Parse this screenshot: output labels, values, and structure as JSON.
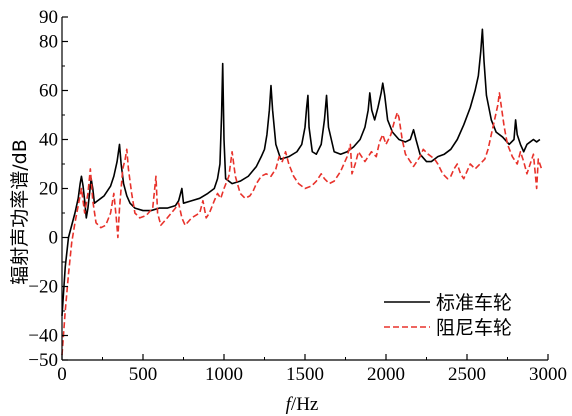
{
  "chart_data": {
    "type": "line",
    "xlabel": "f/Hz",
    "xlabel_italic": "f",
    "xlabel_rest": "/Hz",
    "ylabel": "辐射声功率谱/dB",
    "xlim": [
      0,
      3000
    ],
    "ylim": [
      -50,
      90
    ],
    "x_ticks": [
      0,
      500,
      1000,
      1500,
      2000,
      2500,
      3000
    ],
    "y_ticks": [
      -50,
      -40,
      -20,
      0,
      20,
      40,
      60,
      80,
      90
    ],
    "grid": false,
    "legend_position": "bottom-right",
    "series": [
      {
        "name": "标准车轮",
        "color": "#000000",
        "style": "solid",
        "points": [
          [
            0,
            -32
          ],
          [
            20,
            -12
          ],
          [
            40,
            0
          ],
          [
            60,
            5
          ],
          [
            80,
            10
          ],
          [
            100,
            16
          ],
          [
            112,
            22
          ],
          [
            120,
            25
          ],
          [
            130,
            21
          ],
          [
            140,
            15
          ],
          [
            150,
            8
          ],
          [
            160,
            12
          ],
          [
            170,
            18
          ],
          [
            180,
            24
          ],
          [
            190,
            20
          ],
          [
            200,
            14
          ],
          [
            220,
            15
          ],
          [
            240,
            16
          ],
          [
            260,
            17
          ],
          [
            280,
            19
          ],
          [
            300,
            21
          ],
          [
            320,
            25
          ],
          [
            340,
            31
          ],
          [
            355,
            38
          ],
          [
            365,
            30
          ],
          [
            380,
            22
          ],
          [
            400,
            17
          ],
          [
            420,
            14
          ],
          [
            450,
            12
          ],
          [
            500,
            11
          ],
          [
            550,
            11
          ],
          [
            600,
            12
          ],
          [
            650,
            12
          ],
          [
            700,
            13
          ],
          [
            720,
            15
          ],
          [
            740,
            20
          ],
          [
            750,
            14
          ],
          [
            800,
            15
          ],
          [
            850,
            16
          ],
          [
            900,
            18
          ],
          [
            940,
            20
          ],
          [
            960,
            24
          ],
          [
            975,
            30
          ],
          [
            985,
            50
          ],
          [
            992,
            71
          ],
          [
            1000,
            40
          ],
          [
            1010,
            24
          ],
          [
            1050,
            22
          ],
          [
            1100,
            23
          ],
          [
            1150,
            25
          ],
          [
            1200,
            29
          ],
          [
            1230,
            33
          ],
          [
            1250,
            36
          ],
          [
            1265,
            42
          ],
          [
            1280,
            52
          ],
          [
            1290,
            62
          ],
          [
            1300,
            52
          ],
          [
            1320,
            38
          ],
          [
            1350,
            32
          ],
          [
            1400,
            33
          ],
          [
            1450,
            35
          ],
          [
            1480,
            38
          ],
          [
            1500,
            45
          ],
          [
            1510,
            53
          ],
          [
            1518,
            58
          ],
          [
            1525,
            45
          ],
          [
            1545,
            35
          ],
          [
            1570,
            34
          ],
          [
            1600,
            38
          ],
          [
            1620,
            48
          ],
          [
            1633,
            58
          ],
          [
            1645,
            45
          ],
          [
            1680,
            35
          ],
          [
            1720,
            34
          ],
          [
            1760,
            35
          ],
          [
            1800,
            37
          ],
          [
            1840,
            40
          ],
          [
            1870,
            45
          ],
          [
            1890,
            52
          ],
          [
            1900,
            59
          ],
          [
            1912,
            52
          ],
          [
            1930,
            48
          ],
          [
            1950,
            53
          ],
          [
            1970,
            59
          ],
          [
            1980,
            63
          ],
          [
            1992,
            58
          ],
          [
            2010,
            48
          ],
          [
            2040,
            43
          ],
          [
            2080,
            40
          ],
          [
            2120,
            39
          ],
          [
            2150,
            40
          ],
          [
            2170,
            44
          ],
          [
            2185,
            40
          ],
          [
            2210,
            34
          ],
          [
            2250,
            31
          ],
          [
            2280,
            31
          ],
          [
            2320,
            33
          ],
          [
            2360,
            34
          ],
          [
            2400,
            36
          ],
          [
            2440,
            40
          ],
          [
            2480,
            46
          ],
          [
            2520,
            53
          ],
          [
            2550,
            60
          ],
          [
            2570,
            66
          ],
          [
            2585,
            76
          ],
          [
            2595,
            85
          ],
          [
            2605,
            72
          ],
          [
            2620,
            58
          ],
          [
            2650,
            48
          ],
          [
            2680,
            43
          ],
          [
            2720,
            41
          ],
          [
            2760,
            38
          ],
          [
            2790,
            40
          ],
          [
            2800,
            48
          ],
          [
            2810,
            42
          ],
          [
            2830,
            38
          ],
          [
            2850,
            35
          ],
          [
            2870,
            38
          ],
          [
            2890,
            39
          ],
          [
            2910,
            40
          ],
          [
            2930,
            39
          ],
          [
            2950,
            40
          ]
        ]
      },
      {
        "name": "阻尼车轮",
        "color": "#e8322b",
        "style": "dashed",
        "points": [
          [
            0,
            -48
          ],
          [
            20,
            -30
          ],
          [
            40,
            -15
          ],
          [
            60,
            -2
          ],
          [
            80,
            6
          ],
          [
            100,
            13
          ],
          [
            120,
            20
          ],
          [
            140,
            10
          ],
          [
            160,
            18
          ],
          [
            175,
            28
          ],
          [
            190,
            15
          ],
          [
            210,
            6
          ],
          [
            240,
            4
          ],
          [
            270,
            5
          ],
          [
            300,
            10
          ],
          [
            320,
            18
          ],
          [
            335,
            8
          ],
          [
            345,
            0
          ],
          [
            355,
            12
          ],
          [
            375,
            28
          ],
          [
            390,
            32
          ],
          [
            400,
            36
          ],
          [
            410,
            28
          ],
          [
            430,
            18
          ],
          [
            450,
            10
          ],
          [
            480,
            8
          ],
          [
            520,
            9
          ],
          [
            560,
            12
          ],
          [
            580,
            25
          ],
          [
            590,
            10
          ],
          [
            610,
            5
          ],
          [
            650,
            8
          ],
          [
            700,
            12
          ],
          [
            720,
            14
          ],
          [
            740,
            8
          ],
          [
            760,
            5
          ],
          [
            800,
            8
          ],
          [
            850,
            10
          ],
          [
            870,
            15
          ],
          [
            890,
            8
          ],
          [
            910,
            10
          ],
          [
            940,
            15
          ],
          [
            960,
            18
          ],
          [
            980,
            16
          ],
          [
            1000,
            20
          ],
          [
            1030,
            25
          ],
          [
            1050,
            35
          ],
          [
            1070,
            25
          ],
          [
            1100,
            18
          ],
          [
            1130,
            16
          ],
          [
            1160,
            17
          ],
          [
            1180,
            19
          ],
          [
            1200,
            22
          ],
          [
            1230,
            25
          ],
          [
            1260,
            26
          ],
          [
            1290,
            25
          ],
          [
            1320,
            28
          ],
          [
            1340,
            33
          ],
          [
            1360,
            31
          ],
          [
            1380,
            35
          ],
          [
            1400,
            30
          ],
          [
            1430,
            25
          ],
          [
            1460,
            22
          ],
          [
            1500,
            20
          ],
          [
            1540,
            21
          ],
          [
            1570,
            23
          ],
          [
            1600,
            26
          ],
          [
            1620,
            24
          ],
          [
            1650,
            22
          ],
          [
            1680,
            23
          ],
          [
            1720,
            27
          ],
          [
            1760,
            33
          ],
          [
            1780,
            38
          ],
          [
            1790,
            26
          ],
          [
            1810,
            30
          ],
          [
            1830,
            35
          ],
          [
            1850,
            33
          ],
          [
            1870,
            31
          ],
          [
            1890,
            33
          ],
          [
            1910,
            35
          ],
          [
            1940,
            33
          ],
          [
            1960,
            39
          ],
          [
            1980,
            42
          ],
          [
            2000,
            38
          ],
          [
            2030,
            42
          ],
          [
            2050,
            47
          ],
          [
            2070,
            51
          ],
          [
            2080,
            49
          ],
          [
            2100,
            40
          ],
          [
            2120,
            34
          ],
          [
            2150,
            31
          ],
          [
            2170,
            29
          ],
          [
            2190,
            31
          ],
          [
            2210,
            33
          ],
          [
            2230,
            36
          ],
          [
            2260,
            34
          ],
          [
            2280,
            33
          ],
          [
            2300,
            32
          ],
          [
            2320,
            30
          ],
          [
            2350,
            26
          ],
          [
            2380,
            24
          ],
          [
            2400,
            25
          ],
          [
            2420,
            28
          ],
          [
            2440,
            30
          ],
          [
            2460,
            26
          ],
          [
            2480,
            24
          ],
          [
            2500,
            27
          ],
          [
            2520,
            30
          ],
          [
            2550,
            28
          ],
          [
            2580,
            30
          ],
          [
            2610,
            32
          ],
          [
            2630,
            36
          ],
          [
            2650,
            42
          ],
          [
            2670,
            48
          ],
          [
            2690,
            54
          ],
          [
            2700,
            59
          ],
          [
            2715,
            52
          ],
          [
            2730,
            45
          ],
          [
            2750,
            38
          ],
          [
            2780,
            33
          ],
          [
            2810,
            30
          ],
          [
            2830,
            35
          ],
          [
            2850,
            31
          ],
          [
            2870,
            26
          ],
          [
            2890,
            30
          ],
          [
            2910,
            34
          ],
          [
            2930,
            20
          ],
          [
            2940,
            32
          ],
          [
            2960,
            28
          ]
        ]
      }
    ]
  },
  "legend": {
    "items": [
      {
        "label": "标准车轮",
        "color": "#000000",
        "dash": ""
      },
      {
        "label": "阻尼车轮",
        "color": "#e8322b",
        "dash": "6,3"
      }
    ]
  }
}
